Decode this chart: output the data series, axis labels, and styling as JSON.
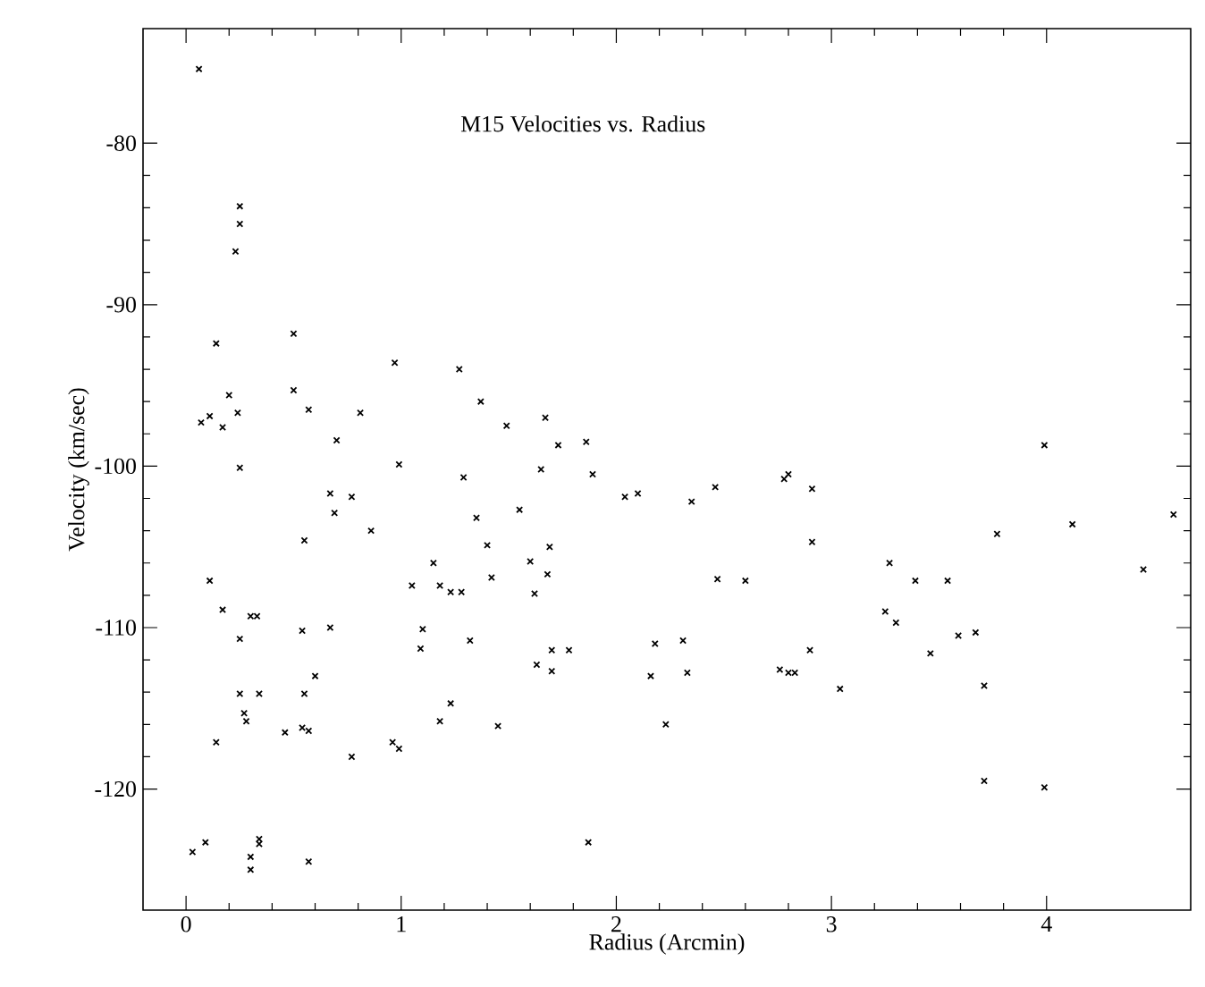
{
  "chart_data": {
    "type": "scatter",
    "title": "M15 Velocities vs. Radius",
    "xlabel": "Radius (Arcmin)",
    "ylabel": "Velocity (km/sec)",
    "xlim": [
      -0.2,
      4.67
    ],
    "ylim": [
      -127.5,
      -72.9
    ],
    "xticks": [
      0,
      1,
      2,
      3,
      4
    ],
    "yticks": [
      -80,
      -90,
      -100,
      -110,
      -120
    ],
    "grid": false,
    "marker": "cross",
    "series": [
      {
        "color": "#000000",
        "x": [
          0.06,
          0.25,
          0.25,
          0.23,
          0.14,
          0.5,
          0.2,
          0.5,
          0.07,
          0.11,
          0.17,
          0.24,
          0.57,
          0.7,
          0.81,
          0.97,
          0.99,
          0.25,
          1.27,
          1.37,
          1.29,
          0.67,
          0.77,
          0.69,
          0.86,
          0.55,
          1.35,
          1.4,
          1.15,
          1.42,
          0.11,
          1.05,
          1.18,
          1.23,
          1.28,
          0.17,
          0.3,
          0.33,
          0.25,
          0.54,
          0.67,
          1.1,
          1.09,
          1.32,
          0.6,
          0.25,
          0.34,
          0.55,
          0.27,
          0.28,
          1.23,
          1.18,
          0.46,
          0.54,
          0.57,
          0.14,
          0.96,
          0.99,
          0.77,
          1.45,
          0.03,
          0.09,
          0.3,
          0.3,
          0.34,
          0.34,
          0.57,
          1.49,
          1.67,
          1.73,
          1.86,
          1.65,
          1.89,
          2.04,
          2.1,
          2.35,
          2.46,
          2.78,
          2.8,
          2.91,
          1.55,
          1.6,
          1.69,
          1.68,
          1.62,
          1.7,
          1.78,
          1.63,
          1.7,
          2.18,
          2.16,
          2.31,
          2.33,
          2.23,
          1.87,
          2.47,
          2.6,
          2.91,
          2.9,
          2.76,
          2.8,
          2.83,
          3.04,
          3.99,
          4.59,
          4.12,
          3.77,
          3.27,
          3.39,
          3.54,
          4.45,
          3.25,
          3.3,
          3.59,
          3.67,
          3.46,
          3.71,
          3.71,
          3.99
        ],
        "values": [
          -75.4,
          -83.9,
          -85.0,
          -86.7,
          -92.4,
          -91.8,
          -95.6,
          -95.3,
          -97.3,
          -96.9,
          -97.6,
          -96.7,
          -96.5,
          -98.4,
          -96.7,
          -93.6,
          -99.9,
          -100.1,
          -94.0,
          -96.0,
          -100.7,
          -101.7,
          -101.9,
          -102.9,
          -104.0,
          -104.6,
          -103.2,
          -104.9,
          -106.0,
          -106.9,
          -107.1,
          -107.4,
          -107.4,
          -107.8,
          -107.8,
          -108.9,
          -109.3,
          -109.3,
          -110.7,
          -110.2,
          -110.0,
          -110.1,
          -111.3,
          -110.8,
          -113.0,
          -114.1,
          -114.1,
          -114.1,
          -115.3,
          -115.8,
          -114.7,
          -115.8,
          -116.5,
          -116.2,
          -116.4,
          -117.1,
          -117.1,
          -117.5,
          -118.0,
          -116.1,
          -123.9,
          -123.3,
          -124.2,
          -125.0,
          -123.1,
          -123.4,
          -124.5,
          -97.5,
          -97.0,
          -98.7,
          -98.5,
          -100.2,
          -100.5,
          -101.9,
          -101.7,
          -102.2,
          -101.3,
          -100.8,
          -100.5,
          -101.4,
          -102.7,
          -105.9,
          -105.0,
          -106.7,
          -107.9,
          -111.4,
          -111.4,
          -112.3,
          -112.7,
          -111.0,
          -113.0,
          -110.8,
          -112.8,
          -116.0,
          -123.3,
          -107.0,
          -107.1,
          -104.7,
          -111.4,
          -112.6,
          -112.8,
          -112.8,
          -113.8,
          -98.7,
          -103.0,
          -103.6,
          -104.2,
          -106.0,
          -107.1,
          -107.1,
          -106.4,
          -109.0,
          -109.7,
          -110.5,
          -110.3,
          -111.6,
          -113.6,
          -119.5,
          -119.9
        ]
      }
    ]
  }
}
